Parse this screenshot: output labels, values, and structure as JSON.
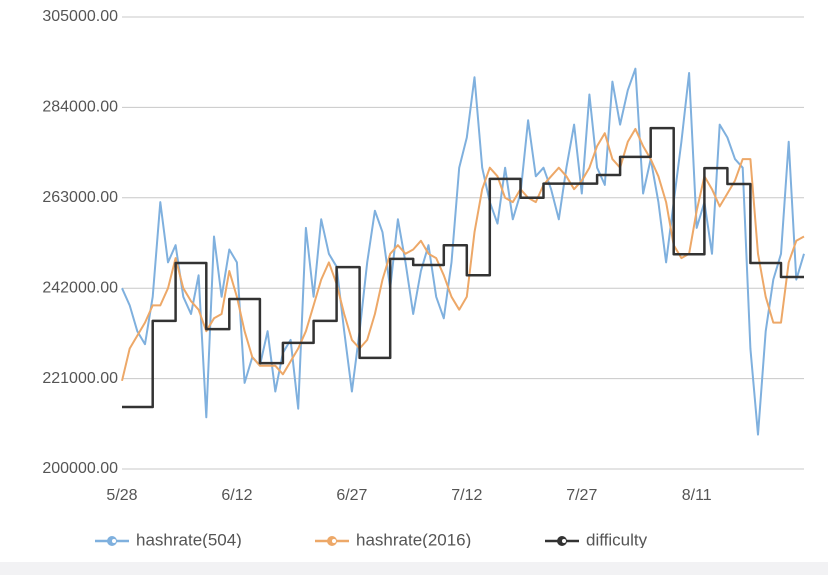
{
  "chart_data": {
    "type": "line",
    "categories": [
      "5/28",
      null,
      null,
      null,
      null,
      null,
      null,
      null,
      null,
      null,
      null,
      null,
      null,
      null,
      null,
      "6/12",
      null,
      null,
      null,
      null,
      null,
      null,
      null,
      null,
      null,
      null,
      null,
      null,
      null,
      null,
      "6/27",
      null,
      null,
      null,
      null,
      null,
      null,
      null,
      null,
      null,
      null,
      null,
      null,
      null,
      null,
      "7/12",
      null,
      null,
      null,
      null,
      null,
      null,
      null,
      null,
      null,
      null,
      null,
      null,
      null,
      null,
      "7/27",
      null,
      null,
      null,
      null,
      null,
      null,
      null,
      null,
      null,
      null,
      null,
      null,
      null,
      null,
      "8/11",
      null,
      null,
      null,
      null,
      null,
      null,
      null,
      null,
      null,
      null,
      null,
      null,
      null,
      null
    ],
    "ylim": [
      200000,
      305000
    ],
    "yticks": [
      {
        "value": 200000,
        "label": "200000.00"
      },
      {
        "value": 221000,
        "label": "221000.00"
      },
      {
        "value": 242000,
        "label": "242000.00"
      },
      {
        "value": 263000,
        "label": "263000.00"
      },
      {
        "value": 284000,
        "label": "284000.00"
      },
      {
        "value": 305000,
        "label": "305000.00"
      }
    ],
    "grid": true,
    "legend": "bottom",
    "series": [
      {
        "name": "hashrate(504)",
        "color": "#7fb0de",
        "values": [
          242000,
          238000,
          232000,
          229000,
          240000,
          262000,
          248000,
          252000,
          240000,
          236000,
          245000,
          212000,
          254000,
          240000,
          251000,
          248000,
          220000,
          226000,
          224000,
          232000,
          218000,
          227000,
          230000,
          214000,
          256000,
          240000,
          258000,
          250000,
          247000,
          232000,
          218000,
          232000,
          248000,
          260000,
          255000,
          242000,
          258000,
          248000,
          236000,
          246000,
          252000,
          240000,
          235000,
          248000,
          270000,
          277000,
          291000,
          270000,
          262000,
          257000,
          270000,
          258000,
          264000,
          281000,
          268000,
          270000,
          265000,
          258000,
          270000,
          280000,
          264000,
          287000,
          270000,
          266000,
          290000,
          280000,
          288000,
          293000,
          264000,
          272000,
          262000,
          248000,
          262000,
          276000,
          292000,
          256000,
          262000,
          250000,
          280000,
          277000,
          272000,
          270000,
          228000,
          208000,
          232000,
          244000,
          250000,
          276000,
          244000,
          250000
        ]
      },
      {
        "name": "hashrate(2016)",
        "color": "#eda868",
        "values": [
          220500,
          228000,
          231000,
          234000,
          238000,
          238000,
          242000,
          249000,
          242000,
          239000,
          237000,
          232000,
          235000,
          236000,
          246000,
          240000,
          232000,
          226000,
          224000,
          224000,
          224000,
          222000,
          225000,
          228000,
          232000,
          238000,
          244000,
          248000,
          243000,
          236000,
          230000,
          228000,
          230000,
          236000,
          244000,
          250000,
          252000,
          250000,
          251000,
          253000,
          250000,
          249000,
          245000,
          240000,
          237000,
          240000,
          255000,
          265000,
          270000,
          268000,
          263000,
          262000,
          265000,
          263000,
          262000,
          266000,
          268000,
          270000,
          268000,
          265000,
          267000,
          270000,
          275000,
          278000,
          272000,
          270000,
          276000,
          279000,
          275000,
          272000,
          268000,
          262000,
          252000,
          249000,
          250000,
          260000,
          268000,
          265000,
          261000,
          264000,
          267000,
          272000,
          272000,
          250000,
          240000,
          234000,
          234000,
          248000,
          253000,
          254000
        ]
      },
      {
        "name": "difficulty",
        "color": "#333333",
        "values": [
          214400,
          214400,
          214400,
          214400,
          234400,
          234400,
          234400,
          247850,
          247850,
          247850,
          247850,
          232500,
          232500,
          232500,
          239500,
          239500,
          239500,
          239500,
          224600,
          224600,
          224600,
          229300,
          229300,
          229300,
          229300,
          234400,
          234400,
          234400,
          246900,
          246900,
          246900,
          225800,
          225800,
          225800,
          225800,
          248800,
          248800,
          248800,
          247400,
          247400,
          247400,
          247400,
          252000,
          252000,
          252000,
          245000,
          245000,
          245000,
          267400,
          267400,
          267400,
          267400,
          263000,
          263000,
          263000,
          266300,
          266300,
          266300,
          266300,
          266300,
          266300,
          266300,
          268300,
          268300,
          268300,
          272500,
          272500,
          272500,
          272500,
          279200,
          279200,
          279200,
          249900,
          249900,
          249900,
          249900,
          269900,
          269900,
          269900,
          266200,
          266200,
          266200,
          247850,
          247850,
          247850,
          247850,
          244600,
          244600,
          244600,
          244600
        ],
        "step": true
      }
    ]
  }
}
